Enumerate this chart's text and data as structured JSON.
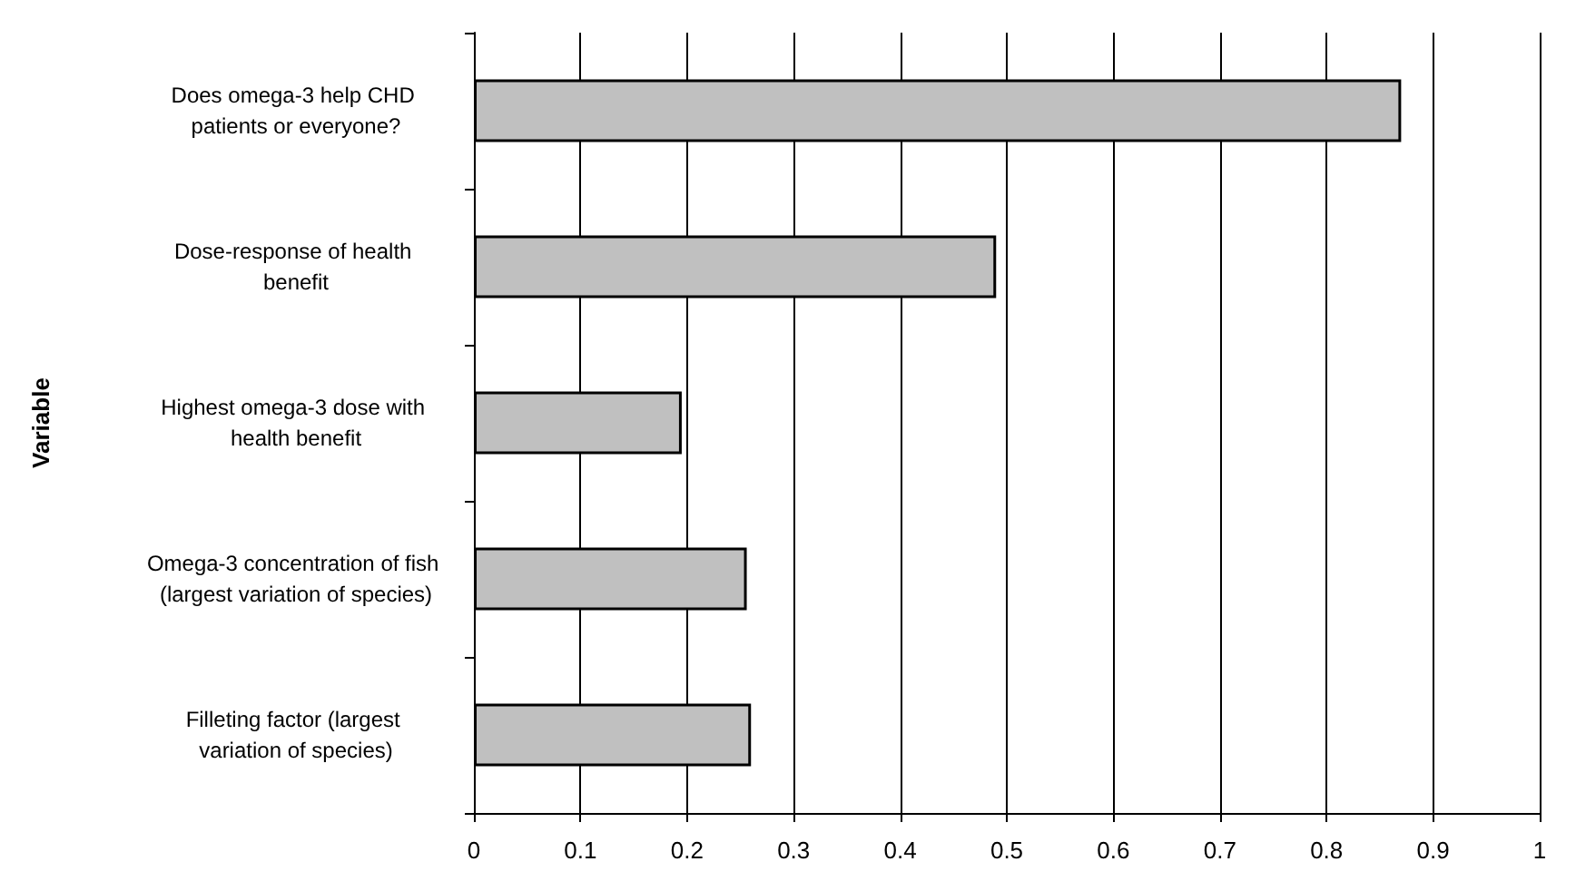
{
  "chart_data": {
    "type": "bar",
    "orientation": "horizontal",
    "ylabel": "Variable",
    "categories": [
      "Does omega-3 help CHD patients or everyone?",
      "Dose-response of health benefit",
      "Highest omega-3 dose with health benefit",
      "Omega-3 concentration of fish (largest variation of species)",
      "Filleting factor (largest variation of species)"
    ],
    "values": [
      0.87,
      0.49,
      0.195,
      0.256,
      0.26
    ],
    "color": "#c0c0c0",
    "xlim": [
      0,
      1
    ],
    "xticks": [
      0,
      0.1,
      0.2,
      0.3,
      0.4,
      0.5,
      0.6,
      0.7,
      0.8,
      0.9,
      1
    ],
    "grid": "x"
  }
}
